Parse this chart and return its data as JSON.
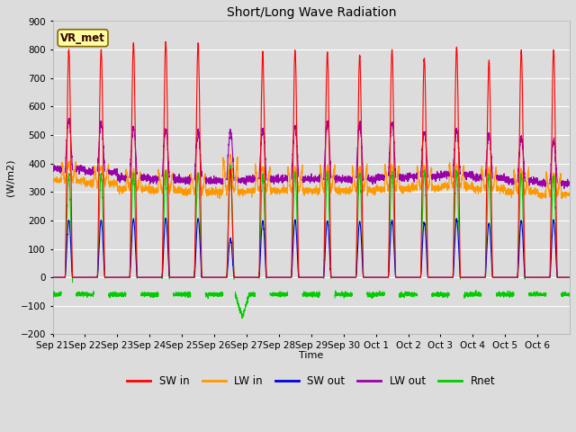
{
  "title": "Short/Long Wave Radiation",
  "xlabel": "Time",
  "ylabel": "(W/m2)",
  "ylim": [
    -200,
    900
  ],
  "yticks": [
    -200,
    -100,
    0,
    100,
    200,
    300,
    400,
    500,
    600,
    700,
    800,
    900
  ],
  "bg_color": "#dcdcdc",
  "plot_bg_color": "#dcdcdc",
  "grid_color": "white",
  "colors": {
    "SW_in": "#ff0000",
    "LW_in": "#ff9900",
    "SW_out": "#0000dd",
    "LW_out": "#9900aa",
    "Rnet": "#00cc00"
  },
  "legend_labels": [
    "SW in",
    "LW in",
    "SW out",
    "LW out",
    "Rnet"
  ],
  "box_label": "VR_met",
  "n_days": 16,
  "tick_labels": [
    "Sep 21",
    "Sep 22",
    "Sep 23",
    "Sep 24",
    "Sep 25",
    "Sep 26",
    "Sep 27",
    "Sep 28",
    "Sep 29",
    "Sep 30",
    "Oct 1",
    "Oct 2",
    "Oct 3",
    "Oct 4",
    "Oct 5",
    "Oct 6"
  ]
}
